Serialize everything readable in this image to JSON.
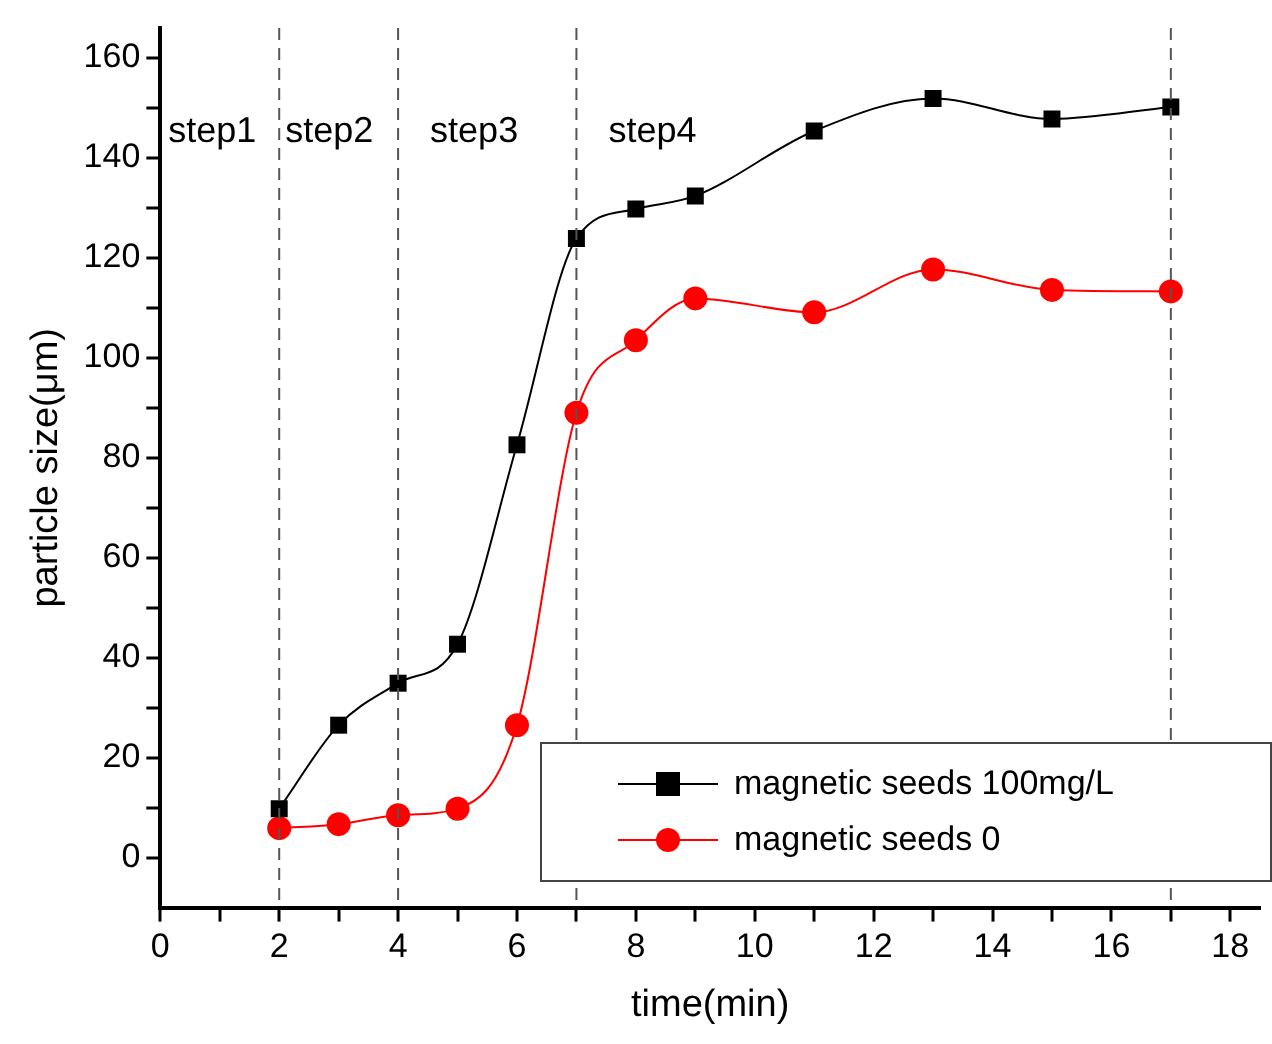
{
  "chart_data": {
    "type": "line",
    "xlabel": "time(min)",
    "ylabel": "particle size(μm)",
    "xlim": [
      0,
      18.5
    ],
    "ylim": [
      -10,
      166
    ],
    "xticks": [
      0,
      {
        "value": 1,
        "label": null
      },
      2,
      {
        "value": 3,
        "label": null
      },
      4,
      {
        "value": 5,
        "label": null
      },
      6,
      {
        "value": 7,
        "label": null
      },
      8,
      {
        "value": 9,
        "label": null
      },
      10,
      {
        "value": 11,
        "label": null
      },
      12,
      {
        "value": 13,
        "label": null
      },
      14,
      {
        "value": 15,
        "label": null
      },
      16,
      {
        "value": 17,
        "label": null
      },
      18
    ],
    "yticks": [
      0,
      {
        "value": 10,
        "label": null
      },
      20,
      {
        "value": 30,
        "label": null
      },
      40,
      {
        "value": 50,
        "label": null
      },
      60,
      {
        "value": 70,
        "label": null
      },
      80,
      {
        "value": 90,
        "label": null
      },
      100,
      {
        "value": 110,
        "label": null
      },
      120,
      {
        "value": 130,
        "label": null
      },
      140,
      {
        "value": 150,
        "label": null
      },
      160
    ],
    "x": [
      2,
      3,
      4,
      5,
      6,
      7,
      8,
      9,
      11,
      13,
      15,
      17
    ],
    "series": [
      {
        "name": "magnetic seeds 100mg/L",
        "color": "#000000",
        "marker": "square",
        "values": [
          9.8,
          26.5,
          34.9,
          42.7,
          82.6,
          123.9,
          129.8,
          132.4,
          145.4,
          151.9,
          147.8,
          150.2
        ]
      },
      {
        "name": "magnetic seeds 0",
        "color": "#ff0000",
        "marker": "circle",
        "values": [
          5.9,
          6.7,
          8.5,
          9.8,
          26.5,
          89,
          103.5,
          111.9,
          109.1,
          117.7,
          113.6,
          113.3
        ]
      }
    ],
    "ref_lines": [
      {
        "axis": "x",
        "value": 2,
        "line_style": "dashed"
      },
      {
        "axis": "x",
        "value": 4,
        "line_style": "dashed"
      },
      {
        "axis": "x",
        "value": 7,
        "line_style": "dashed"
      },
      {
        "axis": "x",
        "value": 17,
        "line_style": "dashed"
      }
    ],
    "annotations": [
      "step1",
      "step2",
      "step3",
      "step4"
    ],
    "grid": false,
    "legend": "bottom right",
    "line_style": "solid"
  }
}
